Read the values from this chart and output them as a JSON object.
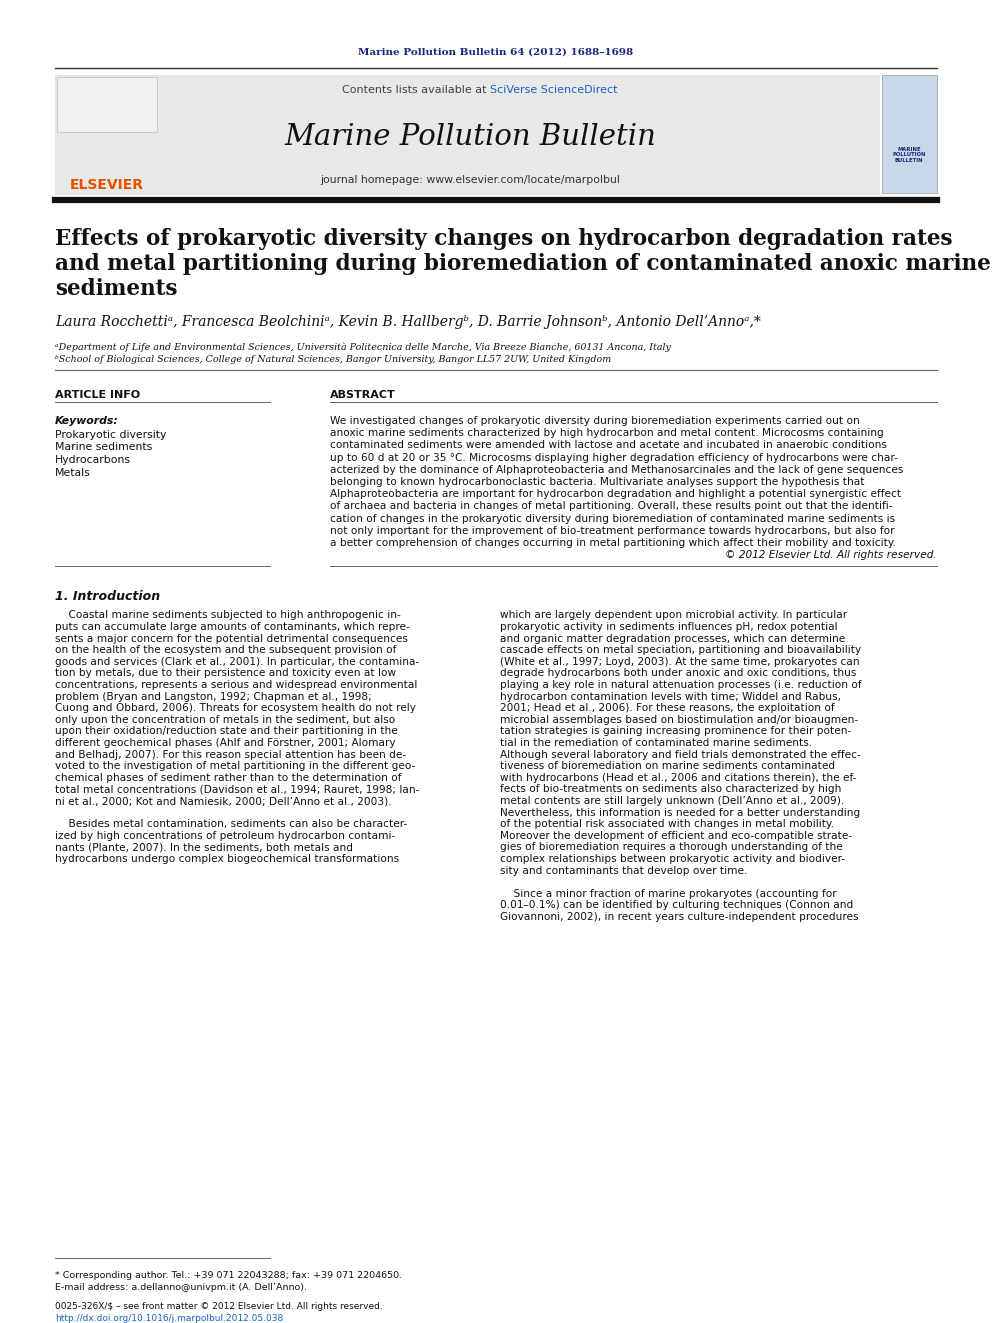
{
  "page_bg": "#ffffff",
  "journal_ref": "Marine Pollution Bulletin 64 (2012) 1688–1698",
  "journal_ref_color": "#1a237e",
  "journal_title": "Marine Pollution Bulletin",
  "contents_text": "Contents lists available at ",
  "sciverse_text": "SciVerse ScienceDirect",
  "sciverse_color": "#1565c0",
  "homepage_text": "journal homepage: www.elsevier.com/locate/marpolbul",
  "header_bg": "#e8e8e8",
  "section_article_info": "ARTICLE INFO",
  "section_abstract": "ABSTRACT",
  "keywords_label": "Keywords:",
  "keywords": [
    "Prokaryotic diversity",
    "Marine sediments",
    "Hydrocarbons",
    "Metals"
  ],
  "footnote_star": "* Corresponding author. Tel.: +39 071 22043288; fax: +39 071 2204650.",
  "footnote_email": "E-mail address: a.dellanno@univpm.it (A. Dell’Anno).",
  "footer_left": "0025-326X/$ – see front matter © 2012 Elsevier Ltd. All rights reserved.",
  "footer_doi": "http://dx.doi.org/10.1016/j.marpolbul.2012.05.038",
  "elsevier_color": "#e65100",
  "link_color": "#1565c0",
  "title_line1": "Effects of prokaryotic diversity changes on hydrocarbon degradation rates",
  "title_line2": "and metal partitioning during bioremediation of contaminated anoxic marine",
  "title_line3": "sediments",
  "authors_line": "Laura Rocchettiᵃ, Francesca Beolchiniᵃ, Kevin B. Hallbergᵇ, D. Barrie Johnsonᵇ, Antonio Dell’Annoᵃ,*",
  "affil_a": "ᵃDepartment of Life and Environmental Sciences, Università Politecnica delle Marche, Via Breeze Bianche, 60131 Ancona, Italy",
  "affil_b": "ᵇSchool of Biological Sciences, College of Natural Sciences, Bangor University, Bangor LL57 2UW, United Kingdom",
  "abstract_lines": [
    "We investigated changes of prokaryotic diversity during bioremediation experiments carried out on",
    "anoxic marine sediments characterized by high hydrocarbon and metal content. Microcosms containing",
    "contaminated sediments were amended with lactose and acetate and incubated in anaerobic conditions",
    "up to 60 d at 20 or 35 °C. Microcosms displaying higher degradation efficiency of hydrocarbons were char-",
    "acterized by the dominance of Alphaproteobacteria and Methanosarcinales and the lack of gene sequences",
    "belonging to known hydrocarbonoclastic bacteria. Multivariate analyses support the hypothesis that",
    "Alphaproteobacteria are important for hydrocarbon degradation and highlight a potential synergistic effect",
    "of archaea and bacteria in changes of metal partitioning. Overall, these results point out that the identifi-",
    "cation of changes in the prokaryotic diversity during bioremediation of contaminated marine sediments is",
    "not only important for the improvement of bio-treatment performance towards hydrocarbons, but also for",
    "a better comprehension of changes occurring in metal partitioning which affect their mobility and toxicity.",
    "© 2012 Elsevier Ltd. All rights reserved."
  ],
  "intro_heading": "1. Introduction",
  "col1_lines": [
    "    Coastal marine sediments subjected to high anthropogenic in-",
    "puts can accumulate large amounts of contaminants, which repre-",
    "sents a major concern for the potential detrimental consequences",
    "on the health of the ecosystem and the subsequent provision of",
    "goods and services (Clark et al., 2001). In particular, the contamina-",
    "tion by metals, due to their persistence and toxicity even at low",
    "concentrations, represents a serious and widespread environmental",
    "problem (Bryan and Langston, 1992; Chapman et al., 1998;",
    "Cuong and Obbard, 2006). Threats for ecosystem health do not rely",
    "only upon the concentration of metals in the sediment, but also",
    "upon their oxidation/reduction state and their partitioning in the",
    "different geochemical phases (Ahlf and Förstner, 2001; Alomary",
    "and Belhadj, 2007). For this reason special attention has been de-",
    "voted to the investigation of metal partitioning in the different geo-",
    "chemical phases of sediment rather than to the determination of",
    "total metal concentrations (Davidson et al., 1994; Rauret, 1998; Ian-",
    "ni et al., 2000; Kot and Namiesik, 2000; Dell’Anno et al., 2003).",
    "",
    "    Besides metal contamination, sediments can also be character-",
    "ized by high concentrations of petroleum hydrocarbon contami-",
    "nants (Plante, 2007). In the sediments, both metals and",
    "hydrocarbons undergo complex biogeochemical transformations"
  ],
  "col2_lines": [
    "which are largely dependent upon microbial activity. In particular",
    "prokaryotic activity in sediments influences pH, redox potential",
    "and organic matter degradation processes, which can determine",
    "cascade effects on metal speciation, partitioning and bioavailability",
    "(White et al., 1997; Loyd, 2003). At the same time, prokaryotes can",
    "degrade hydrocarbons both under anoxic and oxic conditions, thus",
    "playing a key role in natural attenuation processes (i.e. reduction of",
    "hydrocarbon contamination levels with time; Widdel and Rabus,",
    "2001; Head et al., 2006). For these reasons, the exploitation of",
    "microbial assemblages based on biostimulation and/or bioaugmen-",
    "tation strategies is gaining increasing prominence for their poten-",
    "tial in the remediation of contaminated marine sediments.",
    "Although several laboratory and field trials demonstrated the effec-",
    "tiveness of bioremediation on marine sediments contaminated",
    "with hydrocarbons (Head et al., 2006 and citations therein), the ef-",
    "fects of bio-treatments on sediments also characterized by high",
    "metal contents are still largely unknown (Dell’Anno et al., 2009).",
    "Nevertheless, this information is needed for a better understanding",
    "of the potential risk associated with changes in metal mobility.",
    "Moreover the development of efficient and eco-compatible strate-",
    "gies of bioremediation requires a thorough understanding of the",
    "complex relationships between prokaryotic activity and biodiver-",
    "sity and contaminants that develop over time.",
    "",
    "    Since a minor fraction of marine prokaryotes (accounting for",
    "0.01–0.1%) can be identified by culturing techniques (Connon and",
    "Giovannoni, 2002), in recent years culture-independent procedures"
  ]
}
